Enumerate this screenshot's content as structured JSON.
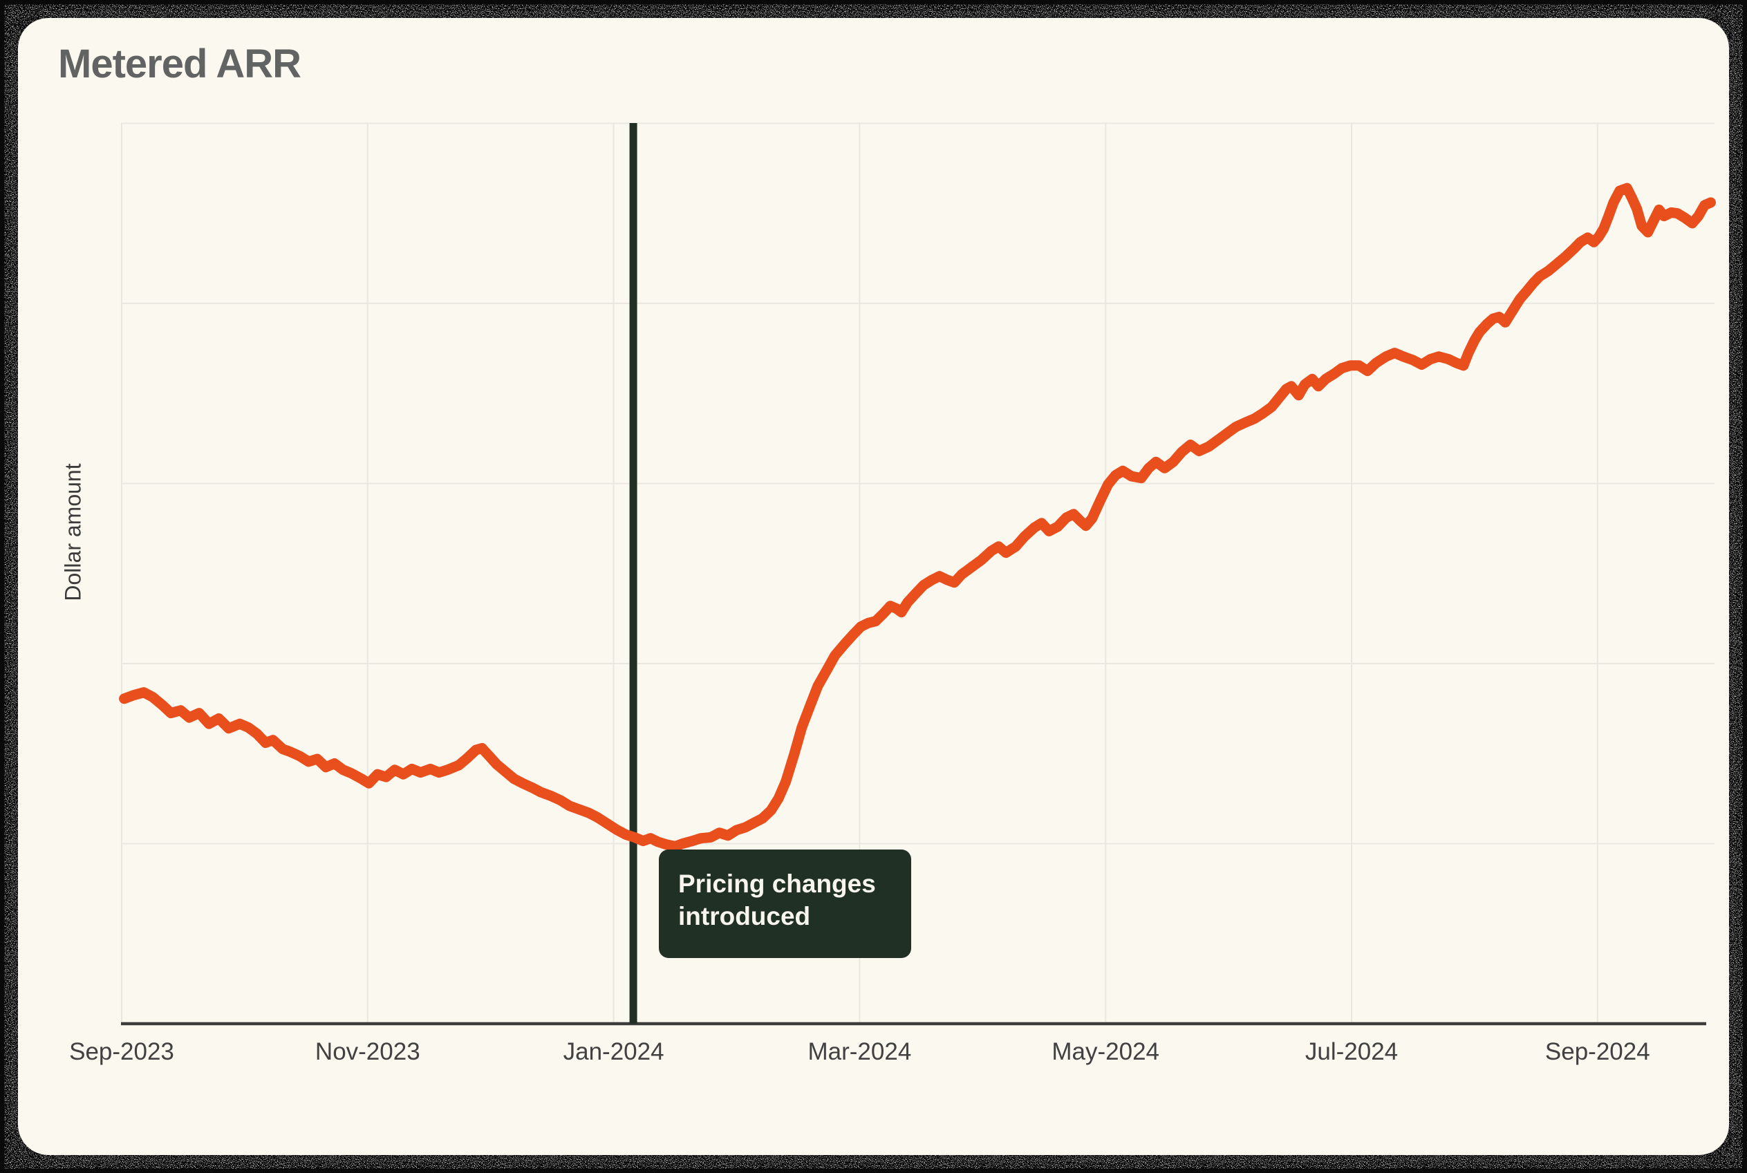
{
  "page": {
    "title": "Metered ARR"
  },
  "colors": {
    "background": "#fbf8f0",
    "line": "#e84f1d",
    "marker": "#203024",
    "annotation_bg": "#203024",
    "annotation_text": "#f7f5ee",
    "grid": "#e9e7df",
    "axis": "#3c3c3a",
    "title_text": "#626463",
    "tick_text": "#404140",
    "frame_noise": "#0a0a0a"
  },
  "chart_data": {
    "type": "line",
    "title": "Metered ARR",
    "xlabel": "",
    "ylabel": "Dollar amount",
    "x_unit": "months since Sep-2023 (fractional)",
    "y_unit": "relative dollar amount, 0-100 of plot height (y axis has no numeric labels)",
    "xlim": [
      0,
      12.95
    ],
    "ylim": [
      0,
      100
    ],
    "grid": {
      "horizontal_values": [
        20,
        40,
        60,
        80,
        100
      ],
      "vertical_at_tick_months": true
    },
    "x_ticks": [
      {
        "label": "Sep-2023",
        "month": 0
      },
      {
        "label": "Nov-2023",
        "month": 2
      },
      {
        "label": "Jan-2024",
        "month": 4
      },
      {
        "label": "Mar-2024",
        "month": 6
      },
      {
        "label": "May-2024",
        "month": 8
      },
      {
        "label": "Jul-2024",
        "month": 10
      },
      {
        "label": "Sep-2024",
        "month": 12
      }
    ],
    "annotation": {
      "lines": [
        "Pricing changes",
        "introduced"
      ],
      "marker_month": 4.16,
      "marker_label_meaning": "vertical line at early Jan-2024"
    },
    "legend": {
      "visible": false
    },
    "series": [
      {
        "name": "Metered ARR",
        "color": "#e84f1d",
        "points": [
          [
            0.02,
            36.1
          ],
          [
            0.1,
            36.5
          ],
          [
            0.18,
            36.8
          ],
          [
            0.25,
            36.3
          ],
          [
            0.33,
            35.4
          ],
          [
            0.4,
            34.5
          ],
          [
            0.48,
            34.8
          ],
          [
            0.55,
            34.0
          ],
          [
            0.63,
            34.5
          ],
          [
            0.71,
            33.3
          ],
          [
            0.79,
            33.9
          ],
          [
            0.87,
            32.8
          ],
          [
            0.96,
            33.3
          ],
          [
            1.03,
            32.9
          ],
          [
            1.1,
            32.2
          ],
          [
            1.17,
            31.2
          ],
          [
            1.23,
            31.5
          ],
          [
            1.31,
            30.5
          ],
          [
            1.37,
            30.2
          ],
          [
            1.45,
            29.7
          ],
          [
            1.52,
            29.1
          ],
          [
            1.59,
            29.4
          ],
          [
            1.66,
            28.5
          ],
          [
            1.73,
            28.9
          ],
          [
            1.8,
            28.2
          ],
          [
            1.87,
            27.8
          ],
          [
            1.95,
            27.2
          ],
          [
            2.01,
            26.7
          ],
          [
            2.08,
            27.7
          ],
          [
            2.15,
            27.4
          ],
          [
            2.22,
            28.2
          ],
          [
            2.29,
            27.7
          ],
          [
            2.36,
            28.3
          ],
          [
            2.43,
            27.9
          ],
          [
            2.51,
            28.3
          ],
          [
            2.58,
            27.9
          ],
          [
            2.65,
            28.2
          ],
          [
            2.74,
            28.7
          ],
          [
            2.81,
            29.5
          ],
          [
            2.88,
            30.4
          ],
          [
            2.93,
            30.6
          ],
          [
            2.99,
            29.7
          ],
          [
            3.05,
            28.8
          ],
          [
            3.12,
            28.0
          ],
          [
            3.19,
            27.2
          ],
          [
            3.26,
            26.7
          ],
          [
            3.34,
            26.2
          ],
          [
            3.41,
            25.7
          ],
          [
            3.49,
            25.3
          ],
          [
            3.57,
            24.8
          ],
          [
            3.64,
            24.2
          ],
          [
            3.72,
            23.8
          ],
          [
            3.8,
            23.4
          ],
          [
            3.87,
            22.9
          ],
          [
            3.95,
            22.2
          ],
          [
            4.03,
            21.5
          ],
          [
            4.1,
            21.0
          ],
          [
            4.17,
            20.7
          ],
          [
            4.24,
            20.3
          ],
          [
            4.3,
            20.6
          ],
          [
            4.36,
            20.2
          ],
          [
            4.43,
            19.9
          ],
          [
            4.5,
            19.7
          ],
          [
            4.56,
            20.0
          ],
          [
            4.64,
            20.3
          ],
          [
            4.71,
            20.6
          ],
          [
            4.79,
            20.7
          ],
          [
            4.86,
            21.2
          ],
          [
            4.93,
            20.9
          ],
          [
            5.0,
            21.5
          ],
          [
            5.07,
            21.8
          ],
          [
            5.14,
            22.3
          ],
          [
            5.21,
            22.8
          ],
          [
            5.28,
            23.7
          ],
          [
            5.34,
            25.0
          ],
          [
            5.4,
            26.9
          ],
          [
            5.47,
            30.0
          ],
          [
            5.53,
            32.9
          ],
          [
            5.6,
            35.4
          ],
          [
            5.66,
            37.5
          ],
          [
            5.73,
            39.2
          ],
          [
            5.8,
            40.9
          ],
          [
            5.88,
            42.2
          ],
          [
            5.94,
            43.1
          ],
          [
            6.01,
            44.1
          ],
          [
            6.07,
            44.5
          ],
          [
            6.13,
            44.7
          ],
          [
            6.19,
            45.5
          ],
          [
            6.25,
            46.4
          ],
          [
            6.3,
            46.1
          ],
          [
            6.34,
            45.7
          ],
          [
            6.39,
            46.8
          ],
          [
            6.45,
            47.7
          ],
          [
            6.52,
            48.7
          ],
          [
            6.59,
            49.3
          ],
          [
            6.65,
            49.7
          ],
          [
            6.71,
            49.3
          ],
          [
            6.77,
            49.0
          ],
          [
            6.83,
            49.9
          ],
          [
            6.91,
            50.7
          ],
          [
            6.99,
            51.5
          ],
          [
            7.07,
            52.5
          ],
          [
            7.13,
            53.0
          ],
          [
            7.19,
            52.3
          ],
          [
            7.27,
            53.0
          ],
          [
            7.34,
            54.1
          ],
          [
            7.42,
            55.1
          ],
          [
            7.48,
            55.6
          ],
          [
            7.54,
            54.7
          ],
          [
            7.61,
            55.2
          ],
          [
            7.68,
            56.2
          ],
          [
            7.74,
            56.6
          ],
          [
            7.79,
            55.9
          ],
          [
            7.84,
            55.3
          ],
          [
            7.89,
            56.1
          ],
          [
            7.96,
            58.2
          ],
          [
            8.02,
            59.9
          ],
          [
            8.08,
            60.9
          ],
          [
            8.14,
            61.4
          ],
          [
            8.21,
            60.8
          ],
          [
            8.29,
            60.6
          ],
          [
            8.35,
            61.7
          ],
          [
            8.41,
            62.4
          ],
          [
            8.48,
            61.7
          ],
          [
            8.55,
            62.4
          ],
          [
            8.62,
            63.5
          ],
          [
            8.69,
            64.3
          ],
          [
            8.76,
            63.6
          ],
          [
            8.84,
            64.1
          ],
          [
            8.91,
            64.8
          ],
          [
            8.99,
            65.6
          ],
          [
            9.06,
            66.3
          ],
          [
            9.14,
            66.8
          ],
          [
            9.21,
            67.2
          ],
          [
            9.28,
            67.8
          ],
          [
            9.35,
            68.5
          ],
          [
            9.41,
            69.5
          ],
          [
            9.47,
            70.5
          ],
          [
            9.51,
            70.8
          ],
          [
            9.57,
            69.8
          ],
          [
            9.62,
            71.0
          ],
          [
            9.68,
            71.6
          ],
          [
            9.73,
            70.8
          ],
          [
            9.79,
            71.6
          ],
          [
            9.86,
            72.2
          ],
          [
            9.92,
            72.8
          ],
          [
            9.99,
            73.1
          ],
          [
            10.06,
            73.1
          ],
          [
            10.13,
            72.5
          ],
          [
            10.2,
            73.4
          ],
          [
            10.28,
            74.1
          ],
          [
            10.35,
            74.5
          ],
          [
            10.42,
            74.1
          ],
          [
            10.5,
            73.7
          ],
          [
            10.57,
            73.2
          ],
          [
            10.64,
            73.8
          ],
          [
            10.71,
            74.1
          ],
          [
            10.79,
            73.8
          ],
          [
            10.85,
            73.4
          ],
          [
            10.91,
            73.1
          ],
          [
            10.95,
            74.5
          ],
          [
            11.0,
            75.9
          ],
          [
            11.04,
            76.8
          ],
          [
            11.1,
            77.7
          ],
          [
            11.15,
            78.3
          ],
          [
            11.2,
            78.5
          ],
          [
            11.25,
            77.9
          ],
          [
            11.31,
            79.2
          ],
          [
            11.37,
            80.5
          ],
          [
            11.42,
            81.3
          ],
          [
            11.48,
            82.3
          ],
          [
            11.53,
            83.0
          ],
          [
            11.6,
            83.6
          ],
          [
            11.67,
            84.4
          ],
          [
            11.74,
            85.2
          ],
          [
            11.81,
            86.1
          ],
          [
            11.86,
            86.8
          ],
          [
            11.92,
            87.3
          ],
          [
            11.97,
            86.8
          ],
          [
            12.01,
            87.4
          ],
          [
            12.05,
            88.3
          ],
          [
            12.09,
            89.7
          ],
          [
            12.13,
            91.2
          ],
          [
            12.18,
            92.5
          ],
          [
            12.24,
            92.8
          ],
          [
            12.28,
            91.7
          ],
          [
            12.32,
            90.5
          ],
          [
            12.36,
            88.6
          ],
          [
            12.41,
            87.9
          ],
          [
            12.46,
            89.3
          ],
          [
            12.5,
            90.4
          ],
          [
            12.54,
            89.7
          ],
          [
            12.6,
            90.1
          ],
          [
            12.65,
            90.0
          ],
          [
            12.71,
            89.5
          ],
          [
            12.77,
            88.9
          ],
          [
            12.82,
            89.7
          ],
          [
            12.87,
            90.9
          ],
          [
            12.92,
            91.2
          ]
        ]
      }
    ]
  }
}
